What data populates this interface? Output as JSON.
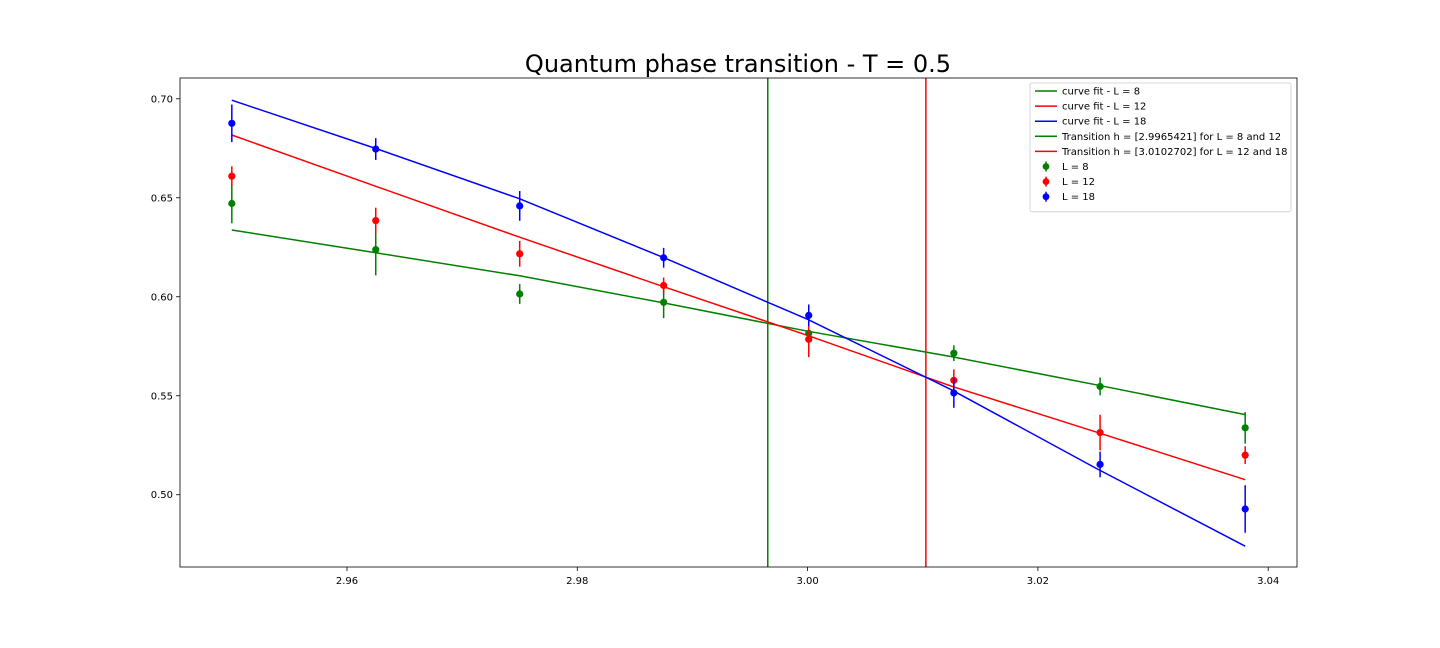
{
  "chart_data": {
    "type": "scatter",
    "title": "Quantum phase transition - T = 0.5",
    "xlabel": "",
    "ylabel": "",
    "xlim": [
      2.9455,
      3.0425
    ],
    "ylim": [
      0.4635,
      0.7105
    ],
    "x_ticks": [
      2.96,
      2.98,
      3.0,
      3.02,
      3.04
    ],
    "x_tick_labels": [
      "2.96",
      "2.98",
      "3.00",
      "3.02",
      "3.04"
    ],
    "y_ticks": [
      0.5,
      0.55,
      0.6,
      0.65,
      0.7
    ],
    "y_tick_labels": [
      "0.50",
      "0.55",
      "0.60",
      "0.65",
      "0.70"
    ],
    "grid": false,
    "legend_position": "top-right",
    "colors": {
      "L8": "#008000",
      "L12": "#ff0000",
      "L18": "#0000ff"
    },
    "fit_lines": [
      {
        "name": "curve fit - L = 8",
        "color": "#008000",
        "x": [
          2.95,
          2.9625,
          2.975,
          2.9875,
          3.0,
          3.0125,
          3.025,
          3.038
        ],
        "y": [
          0.6337,
          0.6222,
          0.6106,
          0.5969,
          0.5826,
          0.5698,
          0.5556,
          0.5405
        ]
      },
      {
        "name": "curve fit - L = 12",
        "color": "#ff0000",
        "x": [
          2.95,
          2.9625,
          2.975,
          2.9875,
          3.0,
          3.0125,
          3.025,
          3.038
        ],
        "y": [
          0.6817,
          0.6558,
          0.6301,
          0.6051,
          0.5805,
          0.5548,
          0.5318,
          0.5076
        ]
      },
      {
        "name": "curve fit - L = 18",
        "color": "#0000ff",
        "x": [
          2.95,
          2.9625,
          2.975,
          2.9875,
          3.0,
          3.0125,
          3.025,
          3.038
        ],
        "y": [
          0.6993,
          0.6749,
          0.6495,
          0.6198,
          0.5886,
          0.553,
          0.5135,
          0.474
        ]
      }
    ],
    "transition_lines": [
      {
        "name": "Transition h = [2.9965421] for L = 8 and 12",
        "x": 2.9965421,
        "color": "#008000"
      },
      {
        "name": "Transition h = [3.0102702] for L = 12 and 18",
        "x": 3.0102702,
        "color": "#ff0000"
      }
    ],
    "series": [
      {
        "name": "L = 8",
        "color": "#008000",
        "x": [
          2.95,
          2.9625,
          2.975,
          2.9875,
          3.0001,
          3.0127,
          3.0254,
          3.038
        ],
        "y": [
          0.6471,
          0.6238,
          0.6014,
          0.5972,
          0.5815,
          0.5715,
          0.5547,
          0.5338
        ],
        "err": [
          0.01,
          0.013,
          0.005,
          0.008,
          0.004,
          0.004,
          0.0045,
          0.008
        ]
      },
      {
        "name": "L = 12",
        "color": "#ff0000",
        "x": [
          2.95,
          2.9625,
          2.975,
          2.9875,
          3.0001,
          3.0127,
          3.0254,
          3.038
        ],
        "y": [
          0.6609,
          0.6385,
          0.6217,
          0.6057,
          0.5785,
          0.5578,
          0.5314,
          0.52
        ],
        "err": [
          0.005,
          0.0065,
          0.0065,
          0.004,
          0.009,
          0.0055,
          0.009,
          0.0045
        ]
      },
      {
        "name": "L = 18",
        "color": "#0000ff",
        "x": [
          2.95,
          2.9625,
          2.975,
          2.9875,
          3.0001,
          3.0127,
          3.0254,
          3.038
        ],
        "y": [
          0.6876,
          0.6746,
          0.6459,
          0.6197,
          0.5906,
          0.5514,
          0.5153,
          0.4928
        ],
        "err": [
          0.0095,
          0.0055,
          0.0075,
          0.005,
          0.0055,
          0.0075,
          0.0065,
          0.012
        ]
      }
    ]
  }
}
